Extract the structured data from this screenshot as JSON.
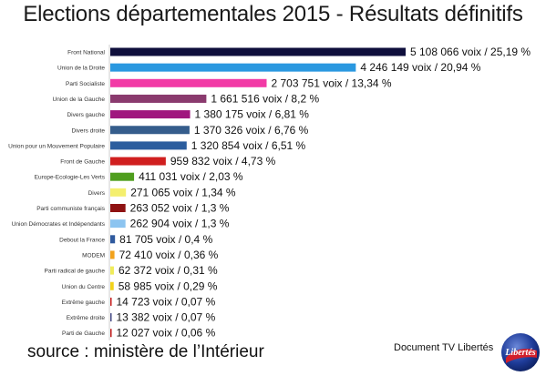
{
  "header": {
    "title": "Elections départementales 2015 - Résultats définitifs"
  },
  "footer": {
    "source": "source : ministère de l’Intérieur",
    "credit": "Document TV Libertés",
    "logo_text": "Libertés"
  },
  "chart_data": {
    "type": "bar",
    "orientation": "horizontal",
    "title": "Elections départementales 2015 - Résultats définitifs",
    "xlabel": "",
    "ylabel": "",
    "grid": false,
    "legend": "none",
    "categories": [
      "Front National",
      "Union de la Droite",
      "Parti Socialiste",
      "Union de la Gauche",
      "Divers gauche",
      "Divers droite",
      "Union pour un Mouvement Populaire",
      "Front de Gauche",
      "Europe-Ecologie-Les Verts",
      "Divers",
      "Parti communiste français",
      "Union Démocrates et Indépendants",
      "Debout la France",
      "MODEM",
      "Parti radical de gauche",
      "Union du Centre",
      "Extrême gauche",
      "Extrême droite",
      "Parti de Gauche"
    ],
    "values": [
      5108066,
      4246149,
      2703751,
      1661516,
      1380175,
      1370326,
      1320854,
      959832,
      411031,
      271065,
      263052,
      262904,
      81705,
      72410,
      62372,
      58985,
      14723,
      13382,
      12027
    ],
    "data_labels": [
      "5 108 066 voix / 25,19 %",
      "4 246 149 voix / 20,94 %",
      "2 703 751 voix / 13,34 %",
      "1 661 516 voix / 8,2 %",
      "1 380 175 voix / 6,81 %",
      "1 370 326 voix / 6,76 %",
      "1 320 854 voix / 6,51 %",
      "959 832 voix / 4,73 %",
      "411 031 voix / 2,03 %",
      "271 065 voix / 1,34 %",
      "263 052 voix / 1,3 %",
      "262 904 voix / 1,3 %",
      "81 705 voix / 0,4 %",
      "72 410 voix / 0,36 %",
      "62 372 voix / 0,31 %",
      "58 985 voix / 0,29 %",
      "14 723 voix / 0,07 %",
      "13 382 voix / 0,07 %",
      "12 027 voix / 0,06 %"
    ],
    "colors": [
      "#0f0f3c",
      "#2a98e0",
      "#f23aa6",
      "#8a3a6e",
      "#a0177e",
      "#355d8c",
      "#2b5d9e",
      "#d01f1f",
      "#4f9e1e",
      "#f4ef6e",
      "#8e1212",
      "#8cc4f0",
      "#2f5a9e",
      "#f2a21c",
      "#f0ec5a",
      "#f2d21a",
      "#c81d1d",
      "#454a86",
      "#c01818"
    ],
    "xlim": [
      0,
      5108066
    ]
  }
}
